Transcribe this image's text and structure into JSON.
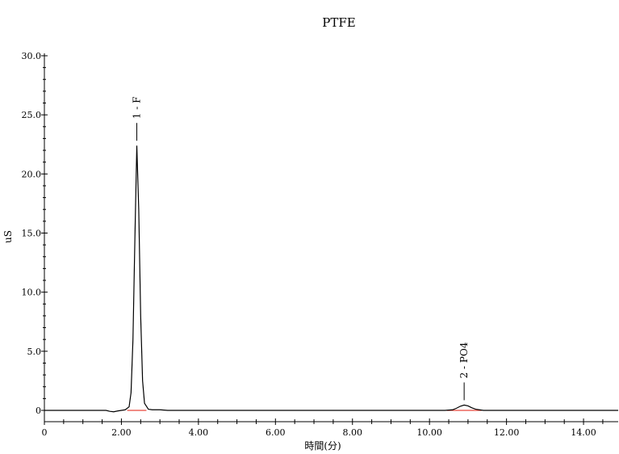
{
  "chart_data": {
    "type": "line",
    "title": "PTFE",
    "xlabel": "時間(分)",
    "ylabel": "uS",
    "xlim": [
      0,
      14.9
    ],
    "ylim": [
      -0.5,
      30.0
    ],
    "x_ticks": [
      0,
      2.0,
      4.0,
      6.0,
      8.0,
      10.0,
      12.0,
      14.0
    ],
    "x_tick_labels": [
      "0",
      "2.00",
      "4.00",
      "6.00",
      "8.00",
      "10.00",
      "12.00",
      "14.00"
    ],
    "y_ticks": [
      0,
      5.0,
      10.0,
      15.0,
      20.0,
      25.0,
      30.0
    ],
    "y_tick_labels": [
      "0",
      "5.0",
      "10.0",
      "15.0",
      "20.0",
      "25.0",
      "30.0"
    ],
    "grid": false,
    "series": [
      {
        "color": "#000000",
        "points": [
          [
            0.0,
            0.0
          ],
          [
            1.6,
            0.0
          ],
          [
            1.7,
            -0.08
          ],
          [
            1.8,
            -0.12
          ],
          [
            1.9,
            -0.05
          ],
          [
            2.0,
            0.0
          ],
          [
            2.1,
            0.05
          ],
          [
            2.2,
            0.3
          ],
          [
            2.25,
            1.5
          ],
          [
            2.3,
            6.0
          ],
          [
            2.35,
            14.5
          ],
          [
            2.4,
            22.4
          ],
          [
            2.45,
            17.0
          ],
          [
            2.5,
            8.0
          ],
          [
            2.55,
            2.5
          ],
          [
            2.6,
            0.6
          ],
          [
            2.7,
            0.1
          ],
          [
            2.8,
            0.05
          ],
          [
            3.0,
            0.05
          ],
          [
            3.2,
            0.0
          ],
          [
            10.4,
            0.0
          ],
          [
            10.6,
            0.05
          ],
          [
            10.7,
            0.18
          ],
          [
            10.8,
            0.35
          ],
          [
            10.9,
            0.45
          ],
          [
            11.0,
            0.38
          ],
          [
            11.1,
            0.22
          ],
          [
            11.2,
            0.1
          ],
          [
            11.4,
            0.0
          ],
          [
            14.9,
            0.0
          ]
        ]
      }
    ],
    "peaks": [
      {
        "label": "1 - F",
        "time": 2.4,
        "height": 22.4,
        "baseline": [
          2.15,
          2.65
        ]
      },
      {
        "label": "2 - PO4",
        "time": 10.9,
        "height": 0.45,
        "baseline": [
          10.45,
          11.35
        ]
      }
    ],
    "baseline_color": "#e8483c"
  }
}
